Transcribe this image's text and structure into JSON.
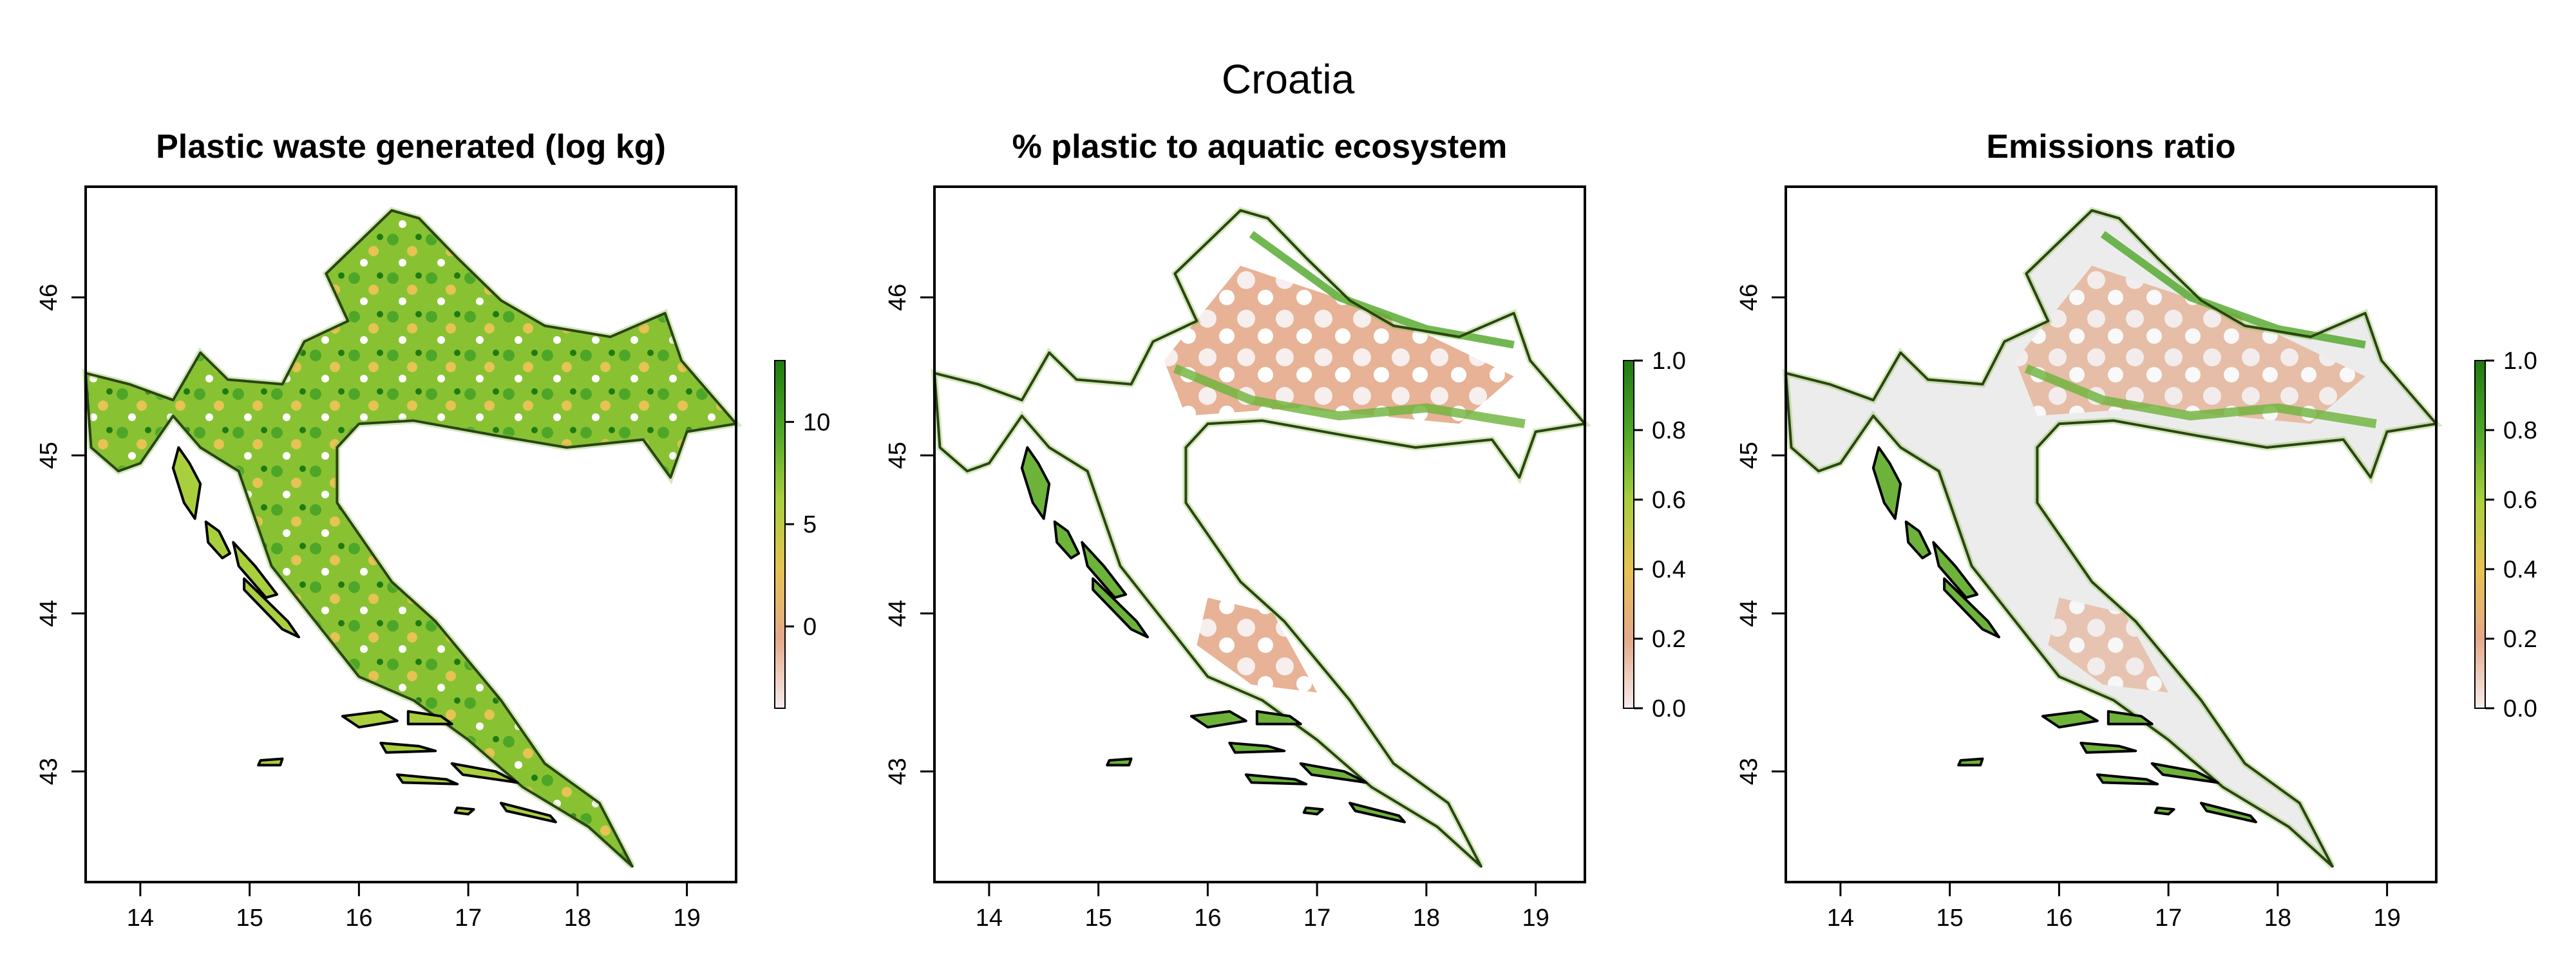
{
  "figure": {
    "title": "Croatia"
  },
  "panels": [
    {
      "title": "Plastic waste generated (log kg)",
      "x_ticks": [
        "14",
        "15",
        "16",
        "17",
        "18",
        "19"
      ],
      "y_ticks": [
        "43",
        "44",
        "45",
        "46"
      ],
      "legend_ticks": [
        "0",
        "5",
        "10"
      ],
      "legend_range": [
        -4,
        13
      ],
      "colors": [
        "#f6ecec",
        "#e4a98a",
        "#e7c254",
        "#a9cf3d",
        "#4ea628",
        "#1f7a12"
      ]
    },
    {
      "title": "% plastic to aquatic ecosystem",
      "x_ticks": [
        "14",
        "15",
        "16",
        "17",
        "18",
        "19"
      ],
      "y_ticks": [
        "43",
        "44",
        "45",
        "46"
      ],
      "legend_ticks": [
        "0.0",
        "0.2",
        "0.4",
        "0.6",
        "0.8",
        "1.0"
      ],
      "legend_range": [
        0,
        1
      ],
      "colors": [
        "#f6ecec",
        "#e4a98a",
        "#e7c254",
        "#a9cf3d",
        "#4ea628",
        "#1f7a12"
      ]
    },
    {
      "title": "Emissions ratio",
      "x_ticks": [
        "14",
        "15",
        "16",
        "17",
        "18",
        "19"
      ],
      "y_ticks": [
        "43",
        "44",
        "45",
        "46"
      ],
      "legend_ticks": [
        "0.0",
        "0.2",
        "0.4",
        "0.6",
        "0.8",
        "1.0"
      ],
      "legend_range": [
        0,
        1
      ],
      "colors": [
        "#f6ecec",
        "#e4a98a",
        "#e7c254",
        "#a9cf3d",
        "#4ea628",
        "#1f7a12"
      ]
    }
  ],
  "axes": {
    "x_range": [
      13.5,
      19.45
    ],
    "y_range": [
      42.3,
      46.7
    ]
  },
  "country_outline": [
    [
      13.5,
      45.52
    ],
    [
      13.9,
      45.45
    ],
    [
      14.3,
      45.35
    ],
    [
      14.55,
      45.65
    ],
    [
      14.8,
      45.48
    ],
    [
      15.3,
      45.45
    ],
    [
      15.5,
      45.72
    ],
    [
      15.9,
      45.85
    ],
    [
      15.7,
      46.15
    ],
    [
      16.0,
      46.35
    ],
    [
      16.3,
      46.55
    ],
    [
      16.55,
      46.5
    ],
    [
      16.9,
      46.25
    ],
    [
      17.3,
      45.98
    ],
    [
      17.7,
      45.82
    ],
    [
      18.3,
      45.75
    ],
    [
      18.8,
      45.9
    ],
    [
      18.95,
      45.6
    ],
    [
      19.45,
      45.2
    ],
    [
      19.0,
      45.15
    ],
    [
      18.85,
      44.86
    ],
    [
      18.6,
      45.1
    ],
    [
      17.9,
      45.05
    ],
    [
      17.3,
      45.12
    ],
    [
      16.5,
      45.22
    ],
    [
      16.0,
      45.2
    ],
    [
      15.8,
      45.05
    ],
    [
      15.8,
      44.7
    ],
    [
      16.3,
      44.2
    ],
    [
      16.7,
      43.95
    ],
    [
      17.3,
      43.45
    ],
    [
      17.7,
      43.05
    ],
    [
      18.2,
      42.8
    ],
    [
      18.5,
      42.4
    ],
    [
      18.1,
      42.65
    ],
    [
      17.5,
      42.9
    ],
    [
      17.0,
      43.2
    ],
    [
      16.5,
      43.45
    ],
    [
      16.0,
      43.6
    ],
    [
      15.6,
      43.95
    ],
    [
      15.2,
      44.3
    ],
    [
      14.9,
      44.9
    ],
    [
      14.55,
      45.05
    ],
    [
      14.3,
      45.25
    ],
    [
      14.0,
      44.95
    ],
    [
      13.8,
      44.9
    ],
    [
      13.55,
      45.05
    ]
  ],
  "islands": [
    [
      [
        14.35,
        45.05
      ],
      [
        14.45,
        44.95
      ],
      [
        14.55,
        44.82
      ],
      [
        14.5,
        44.6
      ],
      [
        14.4,
        44.7
      ],
      [
        14.3,
        44.92
      ]
    ],
    [
      [
        14.6,
        44.58
      ],
      [
        14.72,
        44.52
      ],
      [
        14.82,
        44.38
      ],
      [
        14.75,
        44.35
      ],
      [
        14.62,
        44.45
      ]
    ],
    [
      [
        14.85,
        44.45
      ],
      [
        15.05,
        44.3
      ],
      [
        15.25,
        44.12
      ],
      [
        15.15,
        44.1
      ],
      [
        14.9,
        44.3
      ]
    ],
    [
      [
        14.95,
        44.22
      ],
      [
        15.35,
        43.95
      ],
      [
        15.45,
        43.85
      ],
      [
        15.3,
        43.9
      ],
      [
        14.95,
        44.15
      ]
    ],
    [
      [
        15.85,
        43.35
      ],
      [
        16.2,
        43.38
      ],
      [
        16.35,
        43.32
      ],
      [
        16.0,
        43.28
      ]
    ],
    [
      [
        16.45,
        43.38
      ],
      [
        16.75,
        43.35
      ],
      [
        16.85,
        43.3
      ],
      [
        16.45,
        43.3
      ]
    ],
    [
      [
        16.2,
        43.18
      ],
      [
        16.55,
        43.16
      ],
      [
        16.7,
        43.13
      ],
      [
        16.25,
        43.12
      ]
    ],
    [
      [
        16.85,
        43.05
      ],
      [
        17.25,
        43.0
      ],
      [
        17.45,
        42.93
      ],
      [
        16.95,
        42.98
      ]
    ],
    [
      [
        16.35,
        42.98
      ],
      [
        16.8,
        42.95
      ],
      [
        16.9,
        42.92
      ],
      [
        16.4,
        42.93
      ]
    ],
    [
      [
        17.3,
        42.8
      ],
      [
        17.75,
        42.72
      ],
      [
        17.8,
        42.68
      ],
      [
        17.35,
        42.75
      ]
    ],
    [
      [
        16.9,
        42.77
      ],
      [
        17.05,
        42.76
      ],
      [
        17.0,
        42.73
      ],
      [
        16.88,
        42.74
      ]
    ],
    [
      [
        15.1,
        43.07
      ],
      [
        15.3,
        43.08
      ],
      [
        15.28,
        43.04
      ],
      [
        15.08,
        43.04
      ]
    ]
  ]
}
